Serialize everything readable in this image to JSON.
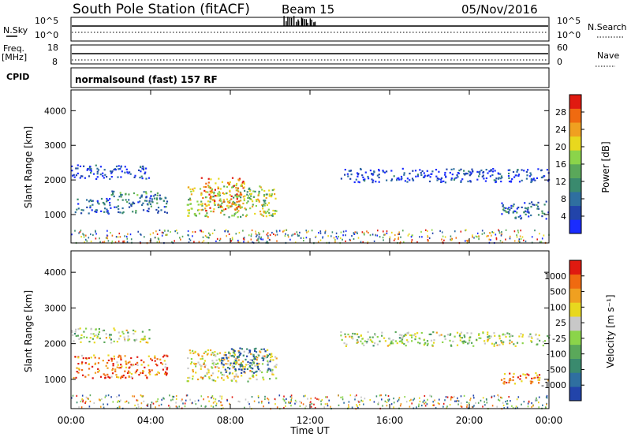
{
  "header": {
    "station": "South Pole Station (fitACF)",
    "beam": "Beam 15",
    "date": "05/Nov/2016"
  },
  "strips": {
    "nsky_label": "N.Sky",
    "nsky_ticks": [
      "10^5",
      "10^0"
    ],
    "nsearch_label": "N.Search",
    "nsearch_ticks": [
      "10^5",
      "10^0"
    ],
    "freq_label": "Freq.",
    "freq_unit": "[MHz]",
    "freq_ticks": [
      "18",
      "8"
    ],
    "nave_label": "Nave",
    "nave_ticks": [
      "60",
      "0"
    ],
    "cpid_label": "CPID",
    "cpid_text": "normalsound (fast) 157 RF"
  },
  "chart_data": [
    {
      "type": "heatmap",
      "name": "power",
      "ylabel": "Slant Range [km]",
      "xlabel": "Time UT",
      "yticks": [
        "4000",
        "3000",
        "2000",
        "1000"
      ],
      "ylim": [
        180,
        4600
      ],
      "xlim_hours": [
        0,
        24
      ],
      "colorbar": {
        "label": "Power [dB]",
        "ticks": [
          "28",
          "24",
          "20",
          "16",
          "12",
          "8",
          "4"
        ],
        "range": [
          0,
          32
        ],
        "colors": [
          "#1a2cff",
          "#2244aa",
          "#2f6fa0",
          "#3a8a6e",
          "#5aa85a",
          "#8bd44a",
          "#e8d81e",
          "#f0a020",
          "#f06a10",
          "#e01a10"
        ]
      },
      "regions": [
        {
          "t0": 0.0,
          "t1": 3.9,
          "r0": 2050,
          "r1": 2450,
          "level": 0.1
        },
        {
          "t0": 0.1,
          "t1": 2.0,
          "r0": 1050,
          "r1": 1500,
          "level": 0.2
        },
        {
          "t0": 2.0,
          "t1": 4.8,
          "r0": 1050,
          "r1": 1700,
          "level": 0.3
        },
        {
          "t0": 5.8,
          "t1": 10.3,
          "r0": 950,
          "r1": 1850,
          "level": 0.55
        },
        {
          "t0": 6.5,
          "t1": 8.7,
          "r0": 1100,
          "r1": 2100,
          "level": 0.75
        },
        {
          "t0": 13.5,
          "t1": 24.0,
          "r0": 1950,
          "r1": 2350,
          "level": 0.1
        },
        {
          "t0": 21.5,
          "t1": 24.0,
          "r0": 900,
          "r1": 1400,
          "level": 0.25
        }
      ]
    },
    {
      "type": "heatmap",
      "name": "velocity",
      "ylabel": "Slant Range [km]",
      "xlabel": "Time UT",
      "yticks": [
        "4000",
        "3000",
        "2000",
        "1000"
      ],
      "ylim": [
        180,
        4600
      ],
      "xlim_hours": [
        0,
        24
      ],
      "colorbar": {
        "label": "Velocity [m s⁻¹]",
        "ticks": [
          "1000",
          "500",
          "100",
          "25",
          "-25",
          "-100",
          "-500",
          "-1000"
        ],
        "colors": [
          "#2244aa",
          "#2f6fa0",
          "#3a8a6e",
          "#5aa85a",
          "#8bd44a",
          "#c8c8c8",
          "#e8d81e",
          "#f0a020",
          "#f06a10",
          "#e01a10"
        ]
      },
      "regions": [
        {
          "t0": 0.0,
          "t1": 3.9,
          "r0": 2050,
          "r1": 2450,
          "level": 0.5
        },
        {
          "t0": 0.1,
          "t1": 4.8,
          "r0": 1050,
          "r1": 1700,
          "level": 0.8
        },
        {
          "t0": 5.8,
          "t1": 10.3,
          "r0": 950,
          "r1": 1850,
          "level": 0.6
        },
        {
          "t0": 7.5,
          "t1": 10.0,
          "r0": 1200,
          "r1": 1900,
          "level": 0.12
        },
        {
          "t0": 13.5,
          "t1": 24.0,
          "r0": 1950,
          "r1": 2350,
          "level": 0.5
        },
        {
          "t0": 21.5,
          "t1": 24.0,
          "r0": 900,
          "r1": 1200,
          "level": 0.8
        }
      ]
    }
  ],
  "time_axis": {
    "ticks": [
      "00:00",
      "04:00",
      "08:00",
      "12:00",
      "16:00",
      "20:00",
      "00:00"
    ],
    "label": "Time UT"
  }
}
